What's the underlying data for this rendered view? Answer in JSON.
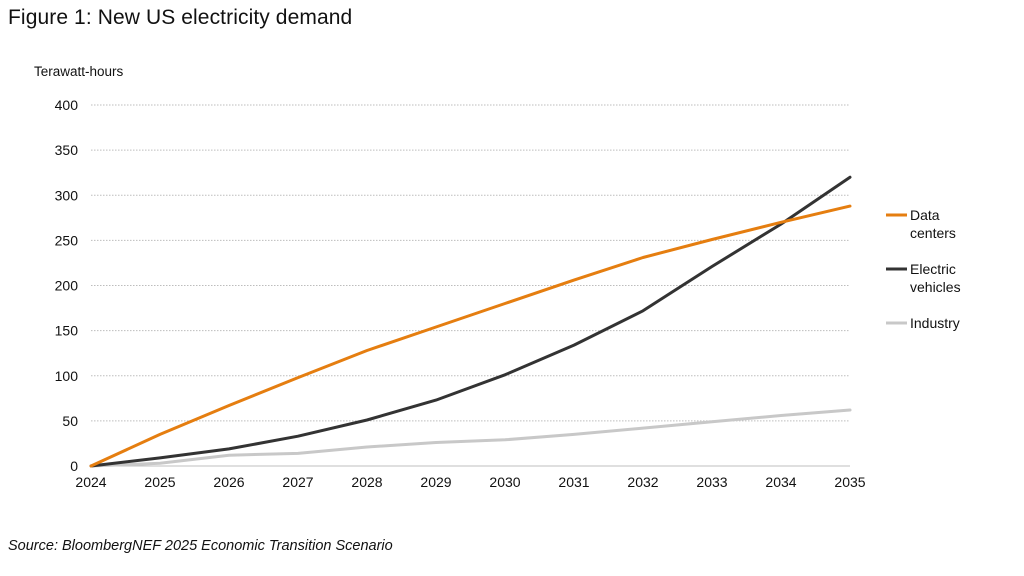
{
  "figure_title": "Figure 1: New US electricity demand",
  "source": "Source: BloombergNEF 2025 Economic Transition Scenario",
  "chart_data": {
    "type": "line",
    "title": "Figure 1: New US electricity demand",
    "ylabel": "Terawatt-hours",
    "xlabel": "",
    "x": [
      2024,
      2025,
      2026,
      2027,
      2028,
      2029,
      2030,
      2031,
      2032,
      2033,
      2034,
      2035
    ],
    "xticks": [
      "2024",
      "2025",
      "2026",
      "2027",
      "2028",
      "2029",
      "2030",
      "2031",
      "2032",
      "2033",
      "2034",
      "2035"
    ],
    "ylim": [
      0,
      400
    ],
    "yticks": [
      "0",
      "50",
      "100",
      "150",
      "200",
      "250",
      "300",
      "350",
      "400"
    ],
    "grid": "horizontal-dotted",
    "legend_position": "right",
    "series": [
      {
        "name_lines": [
          "Data",
          "centers"
        ],
        "color": "#e57e10",
        "values": [
          0,
          35,
          67,
          98,
          128,
          154,
          180,
          206,
          231,
          251,
          270,
          288
        ]
      },
      {
        "name_lines": [
          "Electric",
          "vehicles"
        ],
        "color": "#333333",
        "values": [
          0,
          9,
          19,
          33,
          51,
          73,
          101,
          134,
          172,
          221,
          268,
          320
        ]
      },
      {
        "name_lines": [
          "Industry"
        ],
        "color": "#c8c8c8",
        "values": [
          0,
          3,
          12,
          14,
          21,
          26,
          29,
          35,
          42,
          49,
          56,
          62
        ]
      }
    ]
  }
}
